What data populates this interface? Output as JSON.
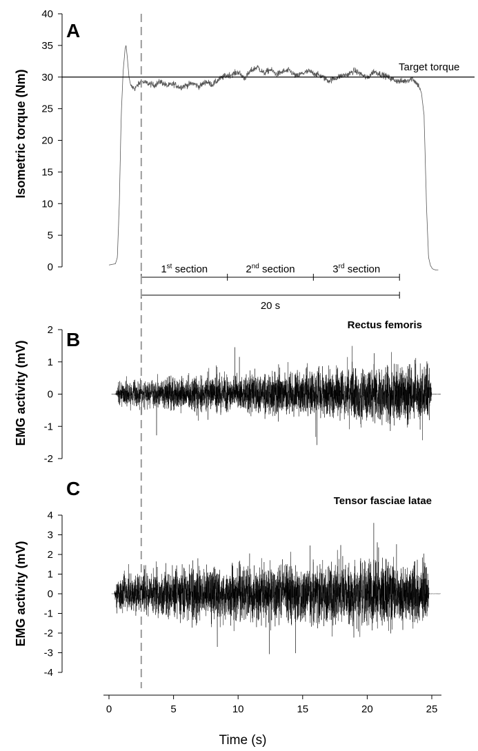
{
  "chart_data": [
    {
      "type": "line",
      "panel": "A",
      "ylabel": "Isometric torque (Nm)",
      "ylim": [
        0,
        40
      ],
      "yticks": [
        0,
        5,
        10,
        15,
        20,
        25,
        30,
        35,
        40
      ],
      "xlim": [
        0,
        25
      ],
      "reference_line": {
        "y": 30,
        "label": "Target torque"
      },
      "annotations": {
        "sections": [
          {
            "num": "1",
            "sup": "st",
            "word": "section",
            "x_range": [
              2.5,
              9.17
            ]
          },
          {
            "num": "2",
            "sup": "nd",
            "word": "section",
            "x_range": [
              9.17,
              15.83
            ]
          },
          {
            "num": "3",
            "sup": "rd",
            "word": "section",
            "x_range": [
              15.83,
              22.5
            ]
          }
        ],
        "span": {
          "label": "20 s",
          "x_range": [
            2.5,
            22.5
          ]
        }
      },
      "series": [
        {
          "x": [
            0.0,
            0.5,
            0.65,
            0.8,
            0.95,
            1.1,
            1.25,
            1.32,
            1.4,
            1.55,
            1.7,
            2.0,
            2.5,
            3.0,
            3.5,
            4.0,
            4.5,
            5.0,
            5.5,
            6.0,
            6.5,
            7.0,
            7.5,
            8.0,
            8.5,
            9.0,
            9.5,
            10.0,
            10.5,
            11.0,
            11.5,
            12.0,
            12.5,
            13.0,
            13.5,
            14.0,
            14.5,
            15.0,
            15.5,
            16.0,
            16.5,
            17.0,
            17.5,
            18.0,
            18.5,
            19.0,
            19.5,
            20.0,
            20.5,
            21.0,
            21.5,
            22.0,
            22.5,
            23.0,
            23.5,
            24.0,
            24.2,
            24.4,
            24.6,
            24.75,
            24.9,
            25.05,
            25.3,
            25.5
          ],
          "y": [
            0.3,
            0.5,
            1.5,
            10,
            24,
            31,
            34.5,
            35,
            33.5,
            30,
            28.5,
            28.2,
            29.3,
            29.0,
            28.7,
            29.3,
            28.6,
            28.9,
            28.4,
            28.7,
            29.0,
            28.5,
            29.3,
            28.8,
            29.6,
            30.2,
            30.4,
            30.8,
            29.8,
            31.0,
            31.6,
            30.6,
            31.2,
            30.4,
            30.9,
            31.0,
            30.1,
            30.6,
            30.9,
            30.5,
            30.1,
            29.4,
            29.8,
            30.2,
            30.4,
            31.0,
            30.5,
            29.8,
            30.9,
            30.5,
            30.1,
            29.6,
            29.3,
            29.4,
            29.8,
            28.6,
            27.5,
            24,
            9,
            1.5,
            0.2,
            -0.3,
            -0.5,
            -0.5
          ]
        }
      ]
    },
    {
      "type": "line",
      "panel": "B",
      "title": "Rectus femoris",
      "ylabel": "EMG activity (mV)",
      "ylim": [
        -2,
        2
      ],
      "yticks": [
        -2,
        -1,
        0,
        1,
        2
      ],
      "xlim": [
        0,
        25
      ],
      "series": [
        {
          "signal": "emg",
          "time_range": [
            0.2,
            25.7
          ],
          "active_range": [
            0.5,
            25.0
          ],
          "envelope_x": [
            0.5,
            2.5,
            5,
            10,
            15,
            20,
            25
          ],
          "envelope_amplitude": [
            0.5,
            0.7,
            0.8,
            0.9,
            1.1,
            1.3,
            1.4
          ]
        }
      ]
    },
    {
      "type": "line",
      "panel": "C",
      "title": "Tensor fasciae latae",
      "ylabel": "EMG activity (mV)",
      "xlabel": "Time (s)",
      "ylim": [
        -4,
        4
      ],
      "yticks": [
        -4,
        -3,
        -2,
        -1,
        0,
        1,
        2,
        3,
        4
      ],
      "xlim": [
        0,
        25
      ],
      "xticks": [
        0,
        5,
        10,
        15,
        20,
        25
      ],
      "series": [
        {
          "signal": "emg",
          "time_range": [
            0.2,
            25.7
          ],
          "active_range": [
            0.4,
            24.8
          ],
          "envelope_x": [
            0.4,
            2.5,
            5,
            10,
            15,
            20,
            24.8
          ],
          "envelope_amplitude": [
            1.4,
            1.6,
            1.9,
            2.1,
            2.4,
            2.6,
            2.5
          ]
        }
      ]
    }
  ],
  "dashed_marker": {
    "x": 2.5
  },
  "colors": {
    "trace": "#000000",
    "torque_trace": "#555555",
    "dashed_line": "#9a9a9a",
    "axis": "#000000"
  }
}
